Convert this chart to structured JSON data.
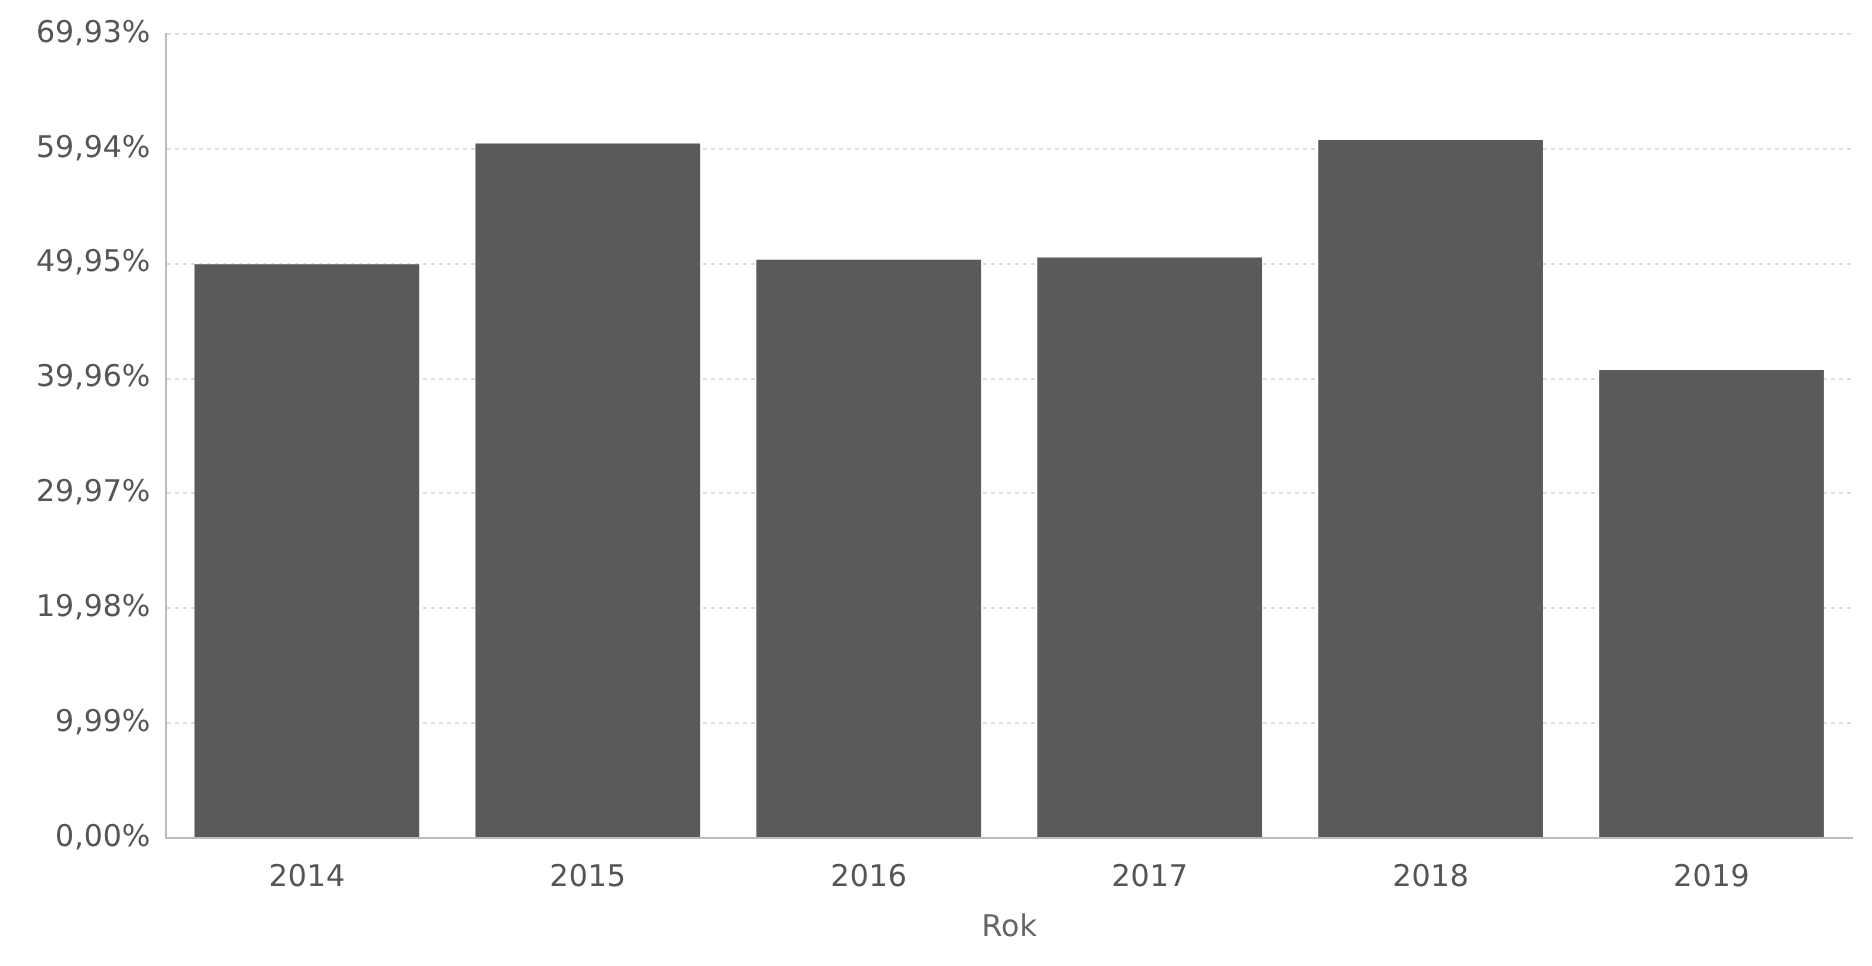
{
  "chart_data": {
    "type": "bar",
    "xlabel": "Rok",
    "categories": [
      "2014",
      "2015",
      "2016",
      "2017",
      "2018",
      "2019"
    ],
    "values": [
      49.9,
      60.4,
      50.3,
      50.5,
      60.7,
      40.7
    ],
    "color": "#5a5a5a",
    "ylim": [
      0,
      69.93
    ],
    "yticks": [
      {
        "value": 0,
        "label": "0,00%"
      },
      {
        "value": 9.99,
        "label": "9,99%"
      },
      {
        "value": 19.98,
        "label": "19,98%"
      },
      {
        "value": 29.97,
        "label": "29,97%"
      },
      {
        "value": 39.96,
        "label": "39,96%"
      },
      {
        "value": 49.95,
        "label": "49,95%"
      },
      {
        "value": 59.94,
        "label": "59,94%"
      },
      {
        "value": 69.93,
        "label": "69,93%"
      }
    ],
    "grid": "y",
    "legend": false
  }
}
